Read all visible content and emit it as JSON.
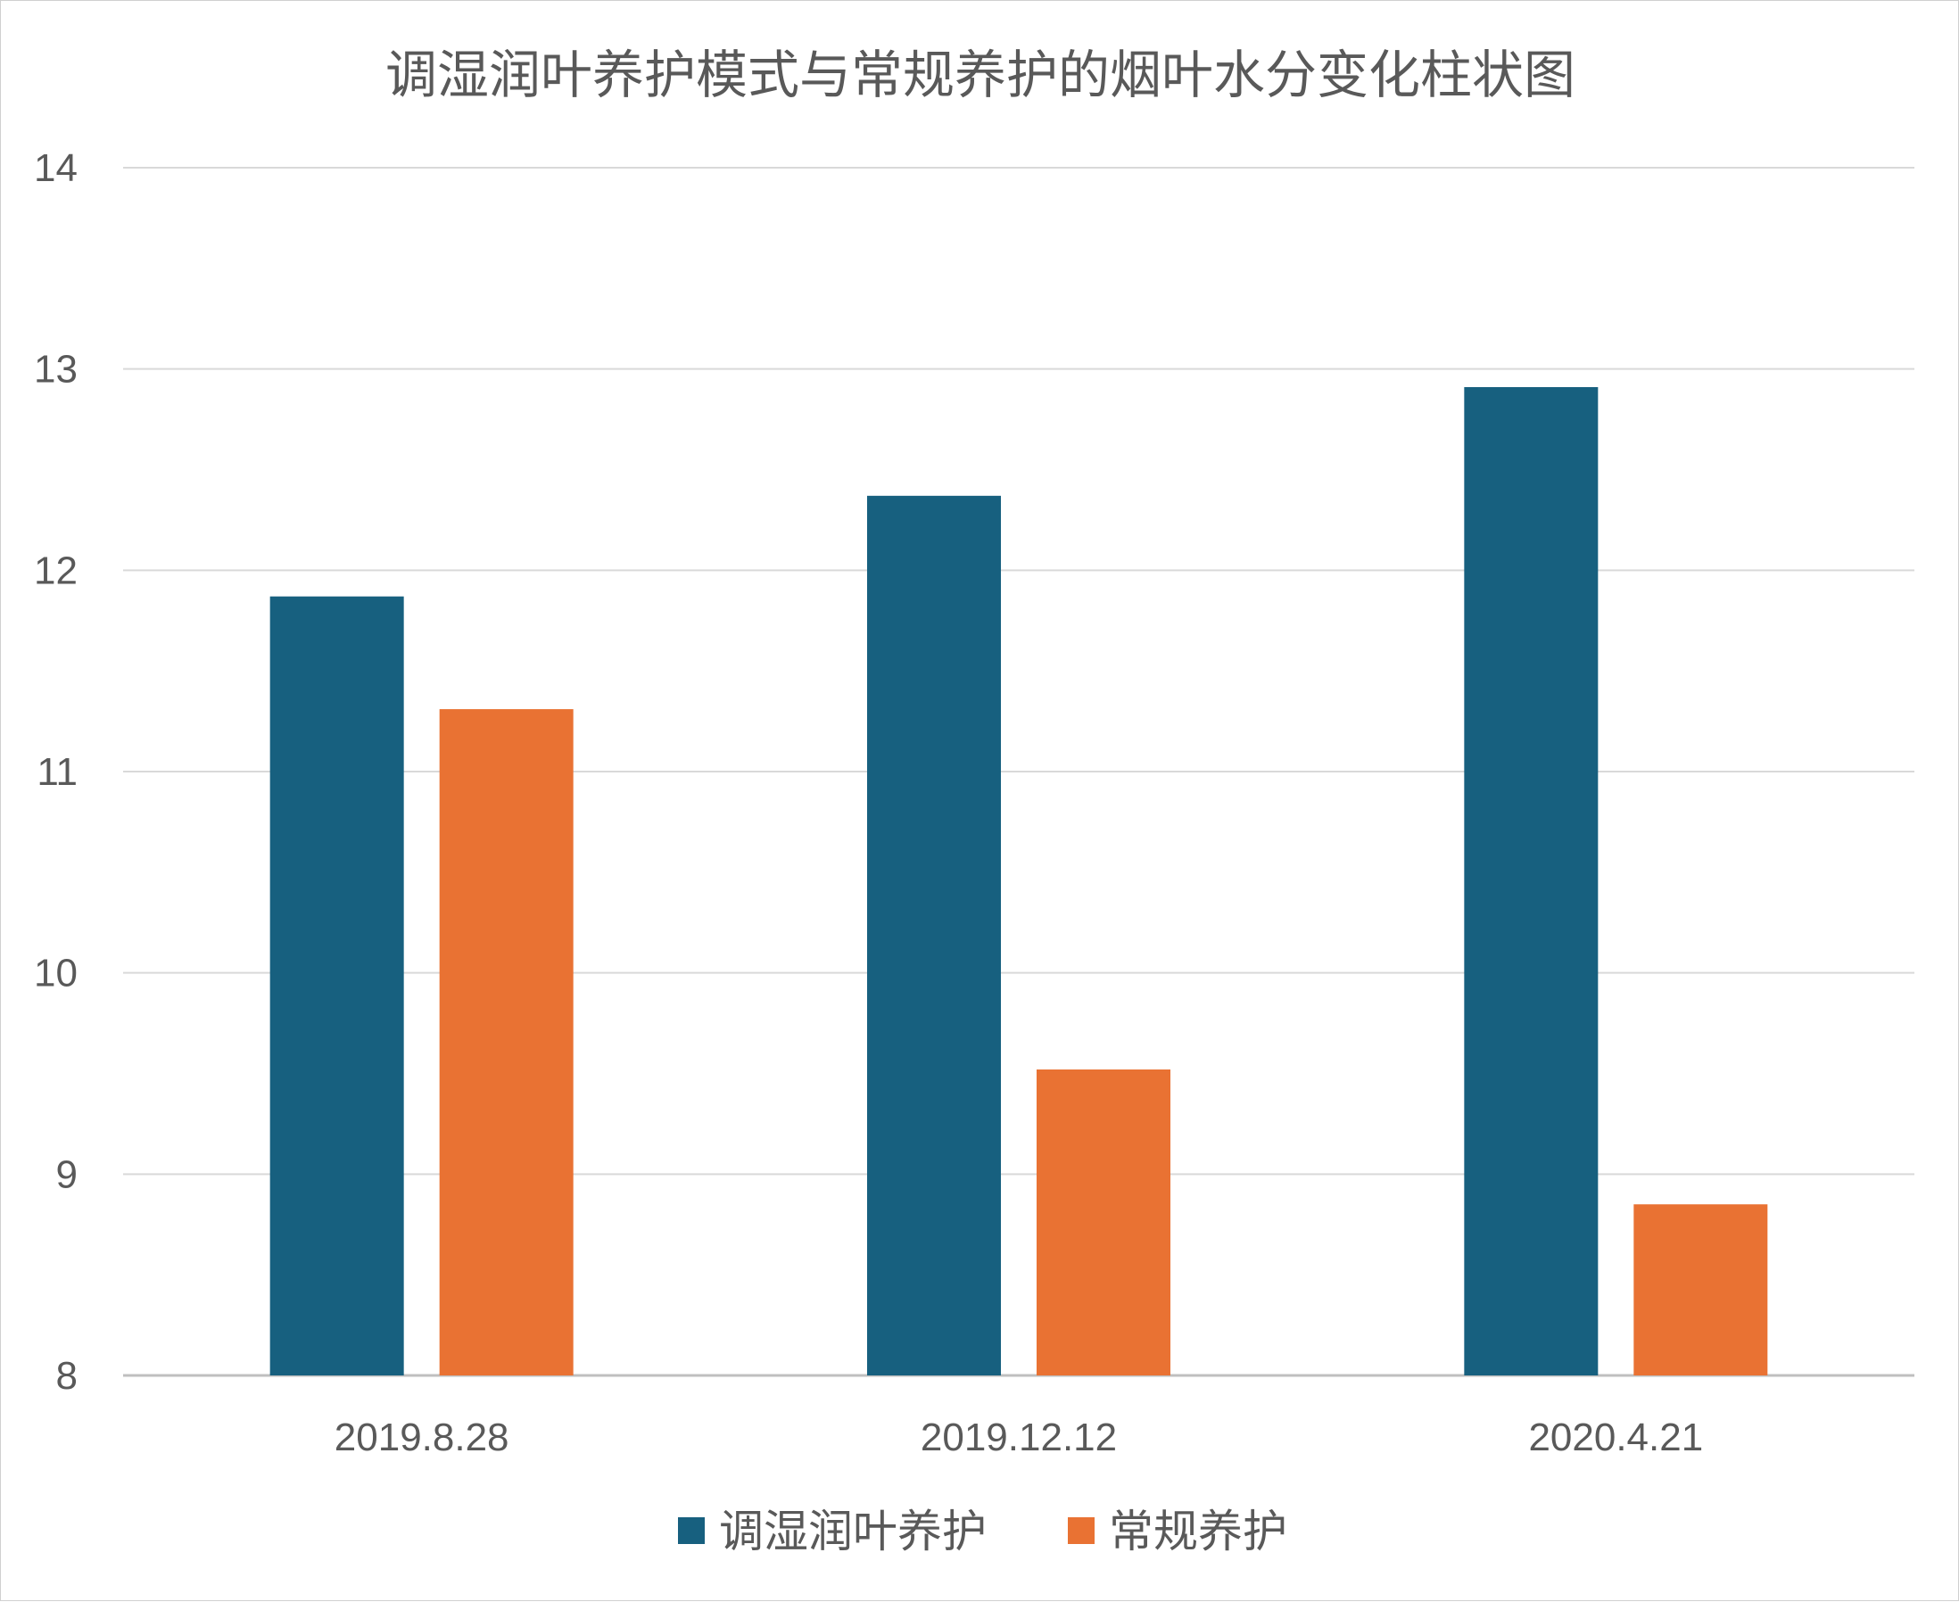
{
  "chart_data": {
    "type": "bar",
    "title": "调湿润叶养护模式与常规养护的烟叶水分变化柱状图",
    "xlabel": "",
    "ylabel": "",
    "categories": [
      "2019.8.28",
      "2019.12.12",
      "2020.4.21"
    ],
    "series": [
      {
        "name": "调湿润叶养护",
        "color": "#17607f",
        "values": [
          11.87,
          12.37,
          12.91
        ]
      },
      {
        "name": "常规养护",
        "color": "#e97233",
        "values": [
          11.31,
          9.52,
          8.85
        ]
      }
    ],
    "ylim": [
      8,
      14
    ],
    "yticks": [
      "8",
      "9",
      "10",
      "11",
      "12",
      "13",
      "14"
    ],
    "grid": true,
    "legend_position": "bottom"
  }
}
